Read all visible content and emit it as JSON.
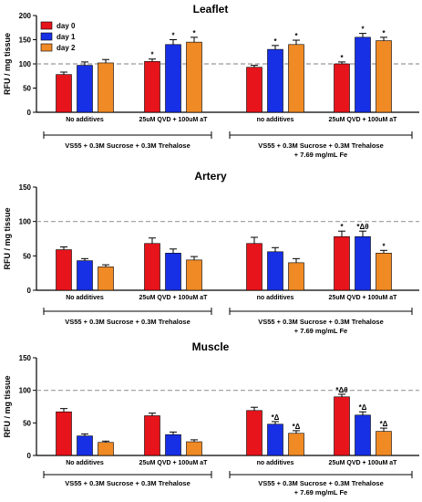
{
  "colors": {
    "day0": "#e8141b",
    "day1": "#1730e6",
    "day2": "#f08a24",
    "ref_line": "#999999",
    "highlight": "#ff00ff"
  },
  "chart_data": [
    {
      "type": "bar",
      "title": "Leaflet",
      "ylabel": "RFU / mg tissue",
      "ylim": [
        0,
        200
      ],
      "yticks": [
        "0",
        "50",
        "100",
        "150",
        "200"
      ],
      "reference_line": 100,
      "legend": {
        "placement": "top-left",
        "entries": [
          "day 0",
          "day 1",
          "day 2"
        ]
      },
      "groups": [
        "No additives",
        "25uM QVD + 100uM aT",
        "no additives",
        "25uM QVD + 100uM aT"
      ],
      "brackets": [
        "VS55 + 0.3M Sucrose + 0.3M Trehalose",
        "VS55 + 0.3M Sucrose + 0.3M Trehalose",
        "+ 7.69 mg/mL Fe"
      ],
      "series": [
        {
          "name": "day 0",
          "values": [
            78,
            105,
            93,
            100
          ],
          "errors": [
            5,
            5,
            4,
            4
          ],
          "annotations": [
            "",
            "*",
            "",
            "*"
          ]
        },
        {
          "name": "day 1",
          "values": [
            97,
            140,
            130,
            155
          ],
          "errors": [
            7,
            10,
            8,
            8
          ],
          "annotations": [
            "",
            "*",
            "*",
            "*"
          ]
        },
        {
          "name": "day 2",
          "values": [
            102,
            145,
            140,
            148
          ],
          "errors": [
            7,
            10,
            9,
            7
          ],
          "annotations": [
            "",
            "*",
            "*",
            "*"
          ]
        }
      ]
    },
    {
      "type": "bar",
      "title": "Artery",
      "ylabel": "RFU / mg tissue",
      "ylim": [
        0,
        150
      ],
      "yticks": [
        "0",
        "50",
        "100",
        "150"
      ],
      "reference_line": 100,
      "groups": [
        "No additives",
        "25uM QVD + 100uM aT",
        "no additives",
        "25uM QVD + 100uM aT"
      ],
      "brackets": [
        "VS55 + 0.3M Sucrose + 0.3M Trehalose",
        "VS55 + 0.3M Sucrose + 0.3M Trehalose",
        "+ 7.69 mg/mL Fe"
      ],
      "series": [
        {
          "name": "day 0",
          "values": [
            59,
            68,
            68,
            78
          ],
          "errors": [
            4,
            8,
            9,
            8
          ],
          "annotations": [
            "",
            "",
            "",
            "*"
          ]
        },
        {
          "name": "day 1",
          "values": [
            43,
            54,
            56,
            78
          ],
          "errors": [
            3,
            6,
            6,
            8
          ],
          "annotations": [
            "",
            "",
            "",
            "*Δθ"
          ]
        },
        {
          "name": "day 2",
          "values": [
            34,
            44,
            40,
            54
          ],
          "errors": [
            3,
            5,
            6,
            4
          ],
          "annotations": [
            "",
            "",
            "",
            "*"
          ]
        }
      ]
    },
    {
      "type": "bar",
      "title": "Muscle",
      "ylabel": "RFU / mg tissue",
      "ylim": [
        0,
        150
      ],
      "yticks": [
        "0",
        "50",
        "100",
        "150"
      ],
      "reference_line": 100,
      "groups": [
        "No additives",
        "25uM QVD + 100uM aT",
        "no additives",
        "25uM QVD + 100uM aT"
      ],
      "brackets": [
        "VS55 + 0.3M Sucrose + 0.3M Trehalose",
        "VS55 + 0.3M Sucrose + 0.3M Trehalose",
        "+ 7.69 mg/mL Fe"
      ],
      "series": [
        {
          "name": "day 0",
          "values": [
            67,
            61,
            69,
            90
          ],
          "errors": [
            5,
            4,
            5,
            4
          ],
          "annotations": [
            "",
            "",
            "",
            "*Δθ"
          ]
        },
        {
          "name": "day 1",
          "values": [
            30,
            32,
            48,
            62
          ],
          "errors": [
            3,
            4,
            4,
            5
          ],
          "annotations": [
            "",
            "",
            "*Δ",
            "*Δ"
          ]
        },
        {
          "name": "day 2",
          "values": [
            20,
            21,
            34,
            37
          ],
          "errors": [
            2,
            3,
            4,
            5
          ],
          "annotations": [
            "",
            "",
            "*Δ",
            "*Δ"
          ]
        }
      ]
    }
  ]
}
